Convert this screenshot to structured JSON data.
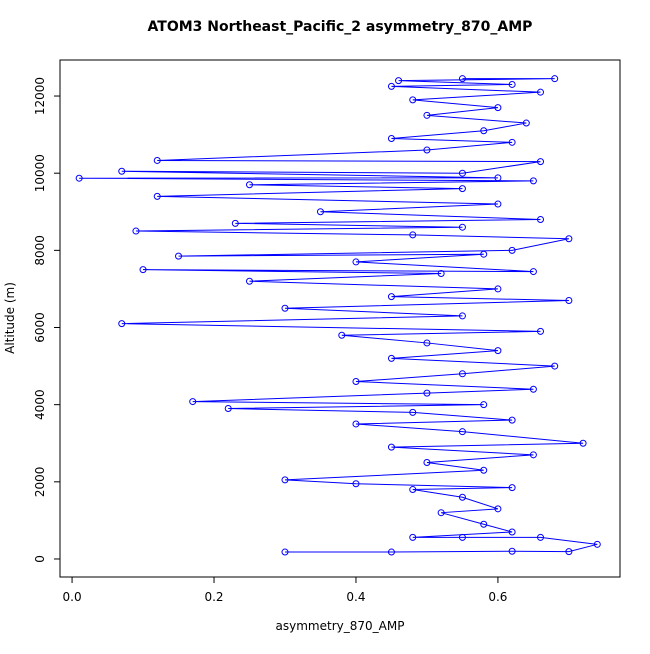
{
  "chart_data": {
    "type": "line",
    "title": "ATOM3 Northeast_Pacific_2 asymmetry_870_AMP",
    "xlabel": "asymmetry_870_AMP",
    "ylabel": "Altitude (m)",
    "xlim": [
      -0.017,
      0.772
    ],
    "ylim": [
      -467,
      12934
    ],
    "xticks": [
      {
        "value": 0,
        "label": "0.0"
      },
      0.2,
      0.4,
      0.6
    ],
    "yticks": [
      0,
      2000,
      4000,
      6000,
      8000,
      10000,
      12000
    ],
    "series": [
      {
        "color": "#0000ff",
        "x": [
          0.3,
          0.45,
          0.62,
          0.7,
          0.74,
          0.66,
          0.55,
          0.48,
          0.62,
          0.58,
          0.52,
          0.6,
          0.55,
          0.48,
          0.62,
          0.4,
          0.3,
          0.58,
          0.5,
          0.65,
          0.45,
          0.72,
          0.55,
          0.4,
          0.62,
          0.48,
          0.22,
          0.58,
          0.17,
          0.5,
          0.65,
          0.4,
          0.55,
          0.68,
          0.45,
          0.6,
          0.5,
          0.38,
          0.66,
          0.07,
          0.55,
          0.3,
          0.7,
          0.45,
          0.6,
          0.25,
          0.52,
          0.1,
          0.65,
          0.4,
          0.58,
          0.15,
          0.62,
          0.7,
          0.48,
          0.09,
          0.55,
          0.23,
          0.66,
          0.35,
          0.6,
          0.12,
          0.55,
          0.25,
          0.65,
          0.01,
          0.6,
          0.07,
          0.55,
          0.66,
          0.12,
          0.5,
          0.62,
          0.45,
          0.58,
          0.64,
          0.5,
          0.6,
          0.48,
          0.66,
          0.45,
          0.62,
          0.46,
          0.68,
          0.55
        ],
        "values": [
          180,
          180,
          200,
          190,
          380,
          560,
          560,
          560,
          700,
          900,
          1200,
          1300,
          1600,
          1800,
          1850,
          1950,
          2050,
          2300,
          2500,
          2700,
          2900,
          3000,
          3300,
          3500,
          3600,
          3800,
          3900,
          4000,
          4080,
          4300,
          4400,
          4600,
          4800,
          5000,
          5200,
          5400,
          5600,
          5800,
          5900,
          6100,
          6300,
          6500,
          6700,
          6800,
          7000,
          7200,
          7400,
          7500,
          7450,
          7700,
          7900,
          7850,
          8000,
          8300,
          8400,
          8500,
          8600,
          8700,
          8800,
          9000,
          9200,
          9400,
          9600,
          9700,
          9800,
          9870,
          9880,
          10050,
          10000,
          10300,
          10330,
          10600,
          10800,
          10900,
          11100,
          11300,
          11500,
          11700,
          11900,
          12100,
          12250,
          12300,
          12400,
          12450,
          12450
        ]
      }
    ]
  }
}
